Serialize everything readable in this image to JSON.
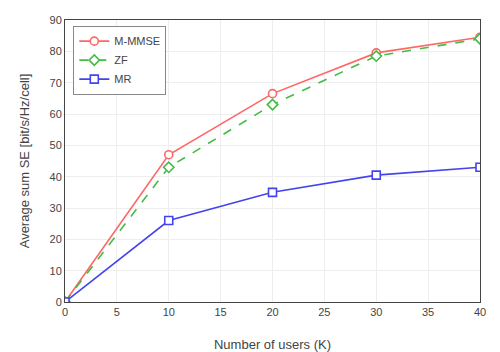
{
  "chart_data": {
    "type": "line",
    "xlabel": "Number of users (K)",
    "ylabel": "Average sum SE [bit/s/Hz/cell]",
    "x": [
      0,
      10,
      20,
      30,
      40
    ],
    "xlim": [
      0,
      40
    ],
    "ylim": [
      0,
      90
    ],
    "xticks": [
      0,
      5,
      10,
      15,
      20,
      25,
      30,
      35,
      40
    ],
    "yticks": [
      0,
      10,
      20,
      30,
      40,
      50,
      60,
      70,
      80,
      90
    ],
    "series": [
      {
        "name": "M-MMSE",
        "color": "#FF6666",
        "marker": "circle",
        "line_style": "solid",
        "values": [
          0,
          47,
          66.5,
          79.5,
          84.5
        ]
      },
      {
        "name": "ZF",
        "color": "#44BB44",
        "marker": "diamond",
        "line_style": "dash",
        "values": [
          0,
          43,
          63,
          78.5,
          84
        ]
      },
      {
        "name": "MR",
        "color": "#4444EE",
        "marker": "square",
        "line_style": "solid",
        "values": [
          0,
          26,
          35,
          40.5,
          43
        ]
      }
    ],
    "legend": "upper left",
    "grid": true
  }
}
